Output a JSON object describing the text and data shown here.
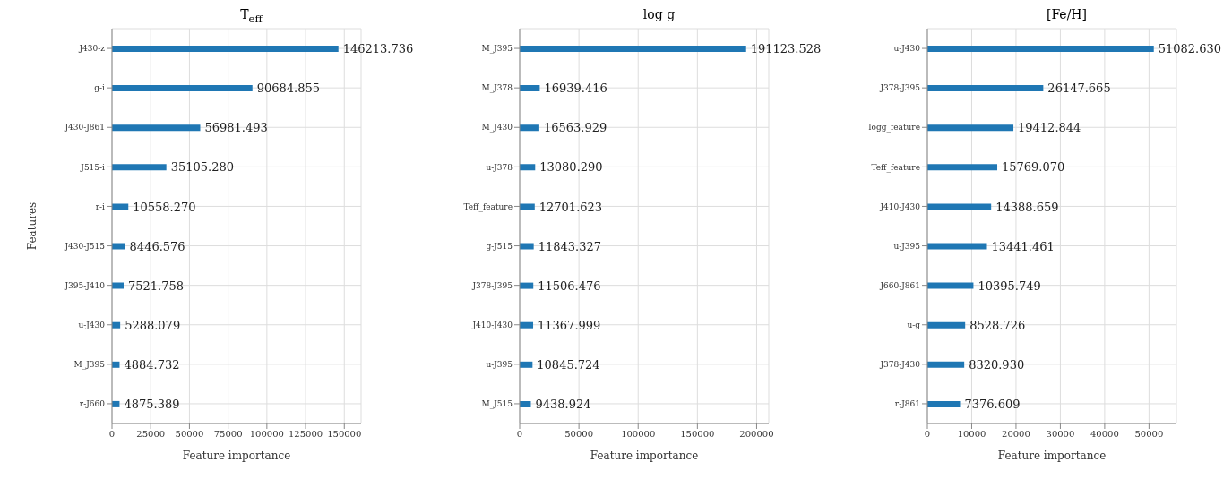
{
  "chart_data": [
    {
      "type": "bar",
      "orientation": "horizontal",
      "title": "T$_{eff}$",
      "xlabel": "Feature importance",
      "ylabel": "Features",
      "categories": [
        "J430-z",
        "g-i",
        "J430-J861",
        "J515-i",
        "r-i",
        "J430-J515",
        "J395-J410",
        "u-J430",
        "M_J395",
        "r-J660"
      ],
      "values": [
        146213.736,
        90684.855,
        56981.493,
        35105.28,
        10558.27,
        8446.576,
        7521.758,
        5288.079,
        4884.732,
        4875.389
      ],
      "value_labels": [
        "146213.736",
        "90684.855",
        "56981.493",
        "35105.280",
        "10558.270",
        "8446.576",
        "7521.758",
        "5288.079",
        "4884.732",
        "4875.389"
      ],
      "color": "#1f77b4",
      "xlim": [
        0,
        160835
      ],
      "xticks": [
        0,
        25000,
        50000,
        75000,
        100000,
        125000,
        150000
      ],
      "grid": true
    },
    {
      "type": "bar",
      "orientation": "horizontal",
      "title": "log g",
      "xlabel": "Feature importance",
      "categories": [
        "M_J395",
        "M_J378",
        "M_J430",
        "u-J378",
        "Teff_feature",
        "g-J515",
        "J378-J395",
        "J410-J430",
        "u-J395",
        "M_J515"
      ],
      "values": [
        191123.528,
        16939.416,
        16563.929,
        13080.29,
        12701.623,
        11843.327,
        11506.476,
        11367.999,
        10845.724,
        9438.924
      ],
      "value_labels": [
        "191123.528",
        "16939.416",
        "16563.929",
        "13080.290",
        "12701.623",
        "11843.327",
        "11506.476",
        "11367.999",
        "10845.724",
        "9438.924"
      ],
      "color": "#1f77b4",
      "xlim": [
        0,
        210236
      ],
      "xticks": [
        0,
        50000,
        100000,
        150000,
        200000
      ],
      "grid": true
    },
    {
      "type": "bar",
      "orientation": "horizontal",
      "title": "[Fe/H]",
      "xlabel": "Feature importance",
      "categories": [
        "u-J430",
        "J378-J395",
        "logg_feature",
        "Teff_feature",
        "J410-J430",
        "u-J395",
        "J660-J861",
        "u-g",
        "J378-J430",
        "r-J861"
      ],
      "values": [
        51082.63,
        26147.665,
        19412.844,
        15769.07,
        14388.659,
        13441.461,
        10395.749,
        8528.726,
        8320.93,
        7376.609
      ],
      "value_labels": [
        "51082.630",
        "26147.665",
        "19412.844",
        "15769.070",
        "14388.659",
        "13441.461",
        "10395.749",
        "8528.726",
        "8320.930",
        "7376.609"
      ],
      "color": "#1f77b4",
      "xlim": [
        0,
        56191
      ],
      "xticks": [
        0,
        10000,
        20000,
        30000,
        40000,
        50000
      ],
      "grid": true
    }
  ]
}
